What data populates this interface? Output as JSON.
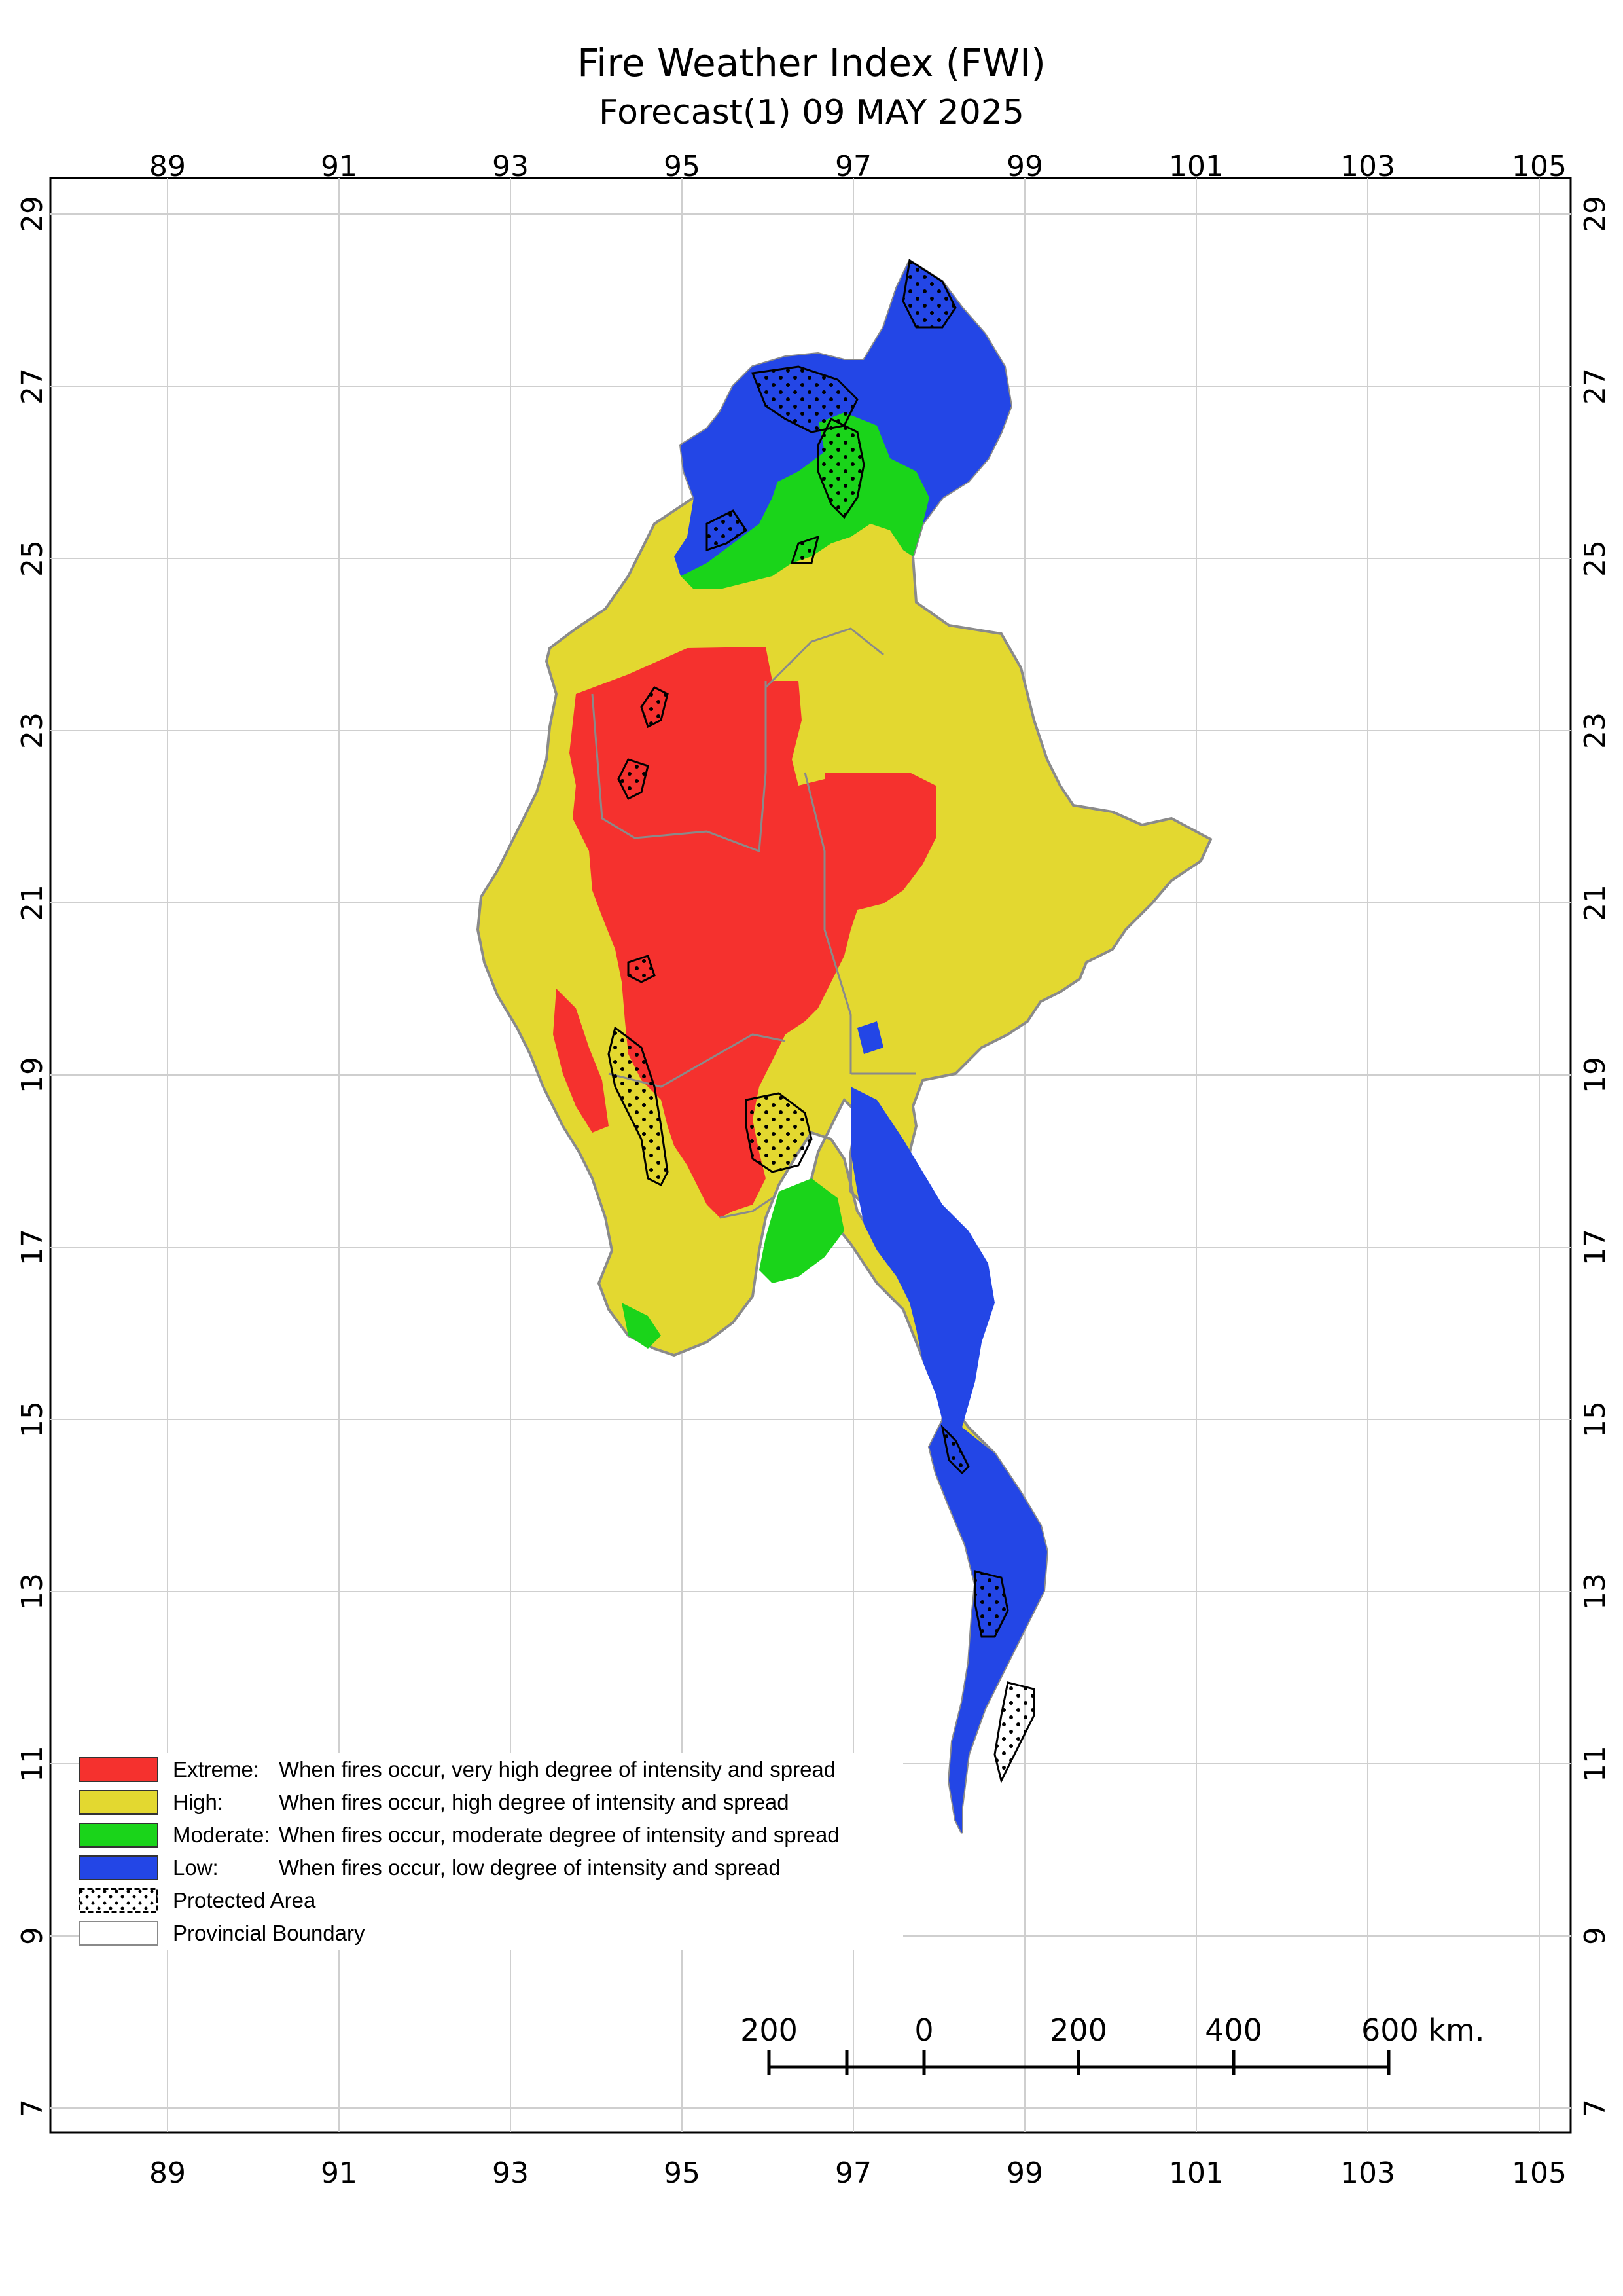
{
  "title": "Fire Weather Index (FWI)",
  "subtitle": "Forecast(1) 09 MAY 2025",
  "lon_ticks": [
    "89",
    "91",
    "93",
    "95",
    "97",
    "99",
    "101",
    "103",
    "105"
  ],
  "lat_ticks": [
    "29",
    "27",
    "25",
    "23",
    "21",
    "19",
    "17",
    "15",
    "13",
    "11",
    "9",
    "7"
  ],
  "legend": {
    "items": [
      {
        "name": "Extreme:",
        "desc": "When fires occur, very high degree of intensity and spread",
        "color": "#f5312e"
      },
      {
        "name": "High:",
        "desc": "When fires occur, high degree of intensity and spread",
        "color": "#e3d830"
      },
      {
        "name": "Moderate:",
        "desc": "When fires occur, moderate degree of intensity and spread",
        "color": "#1ad41a"
      },
      {
        "name": "Low:",
        "desc": "When fires occur, low degree of intensity and spread",
        "color": "#2346e6"
      }
    ],
    "protected": "Protected Area",
    "boundary": "Provincial Boundary"
  },
  "scale_bar": {
    "labels": [
      "200",
      "0",
      "200",
      "400",
      "600 km."
    ]
  }
}
